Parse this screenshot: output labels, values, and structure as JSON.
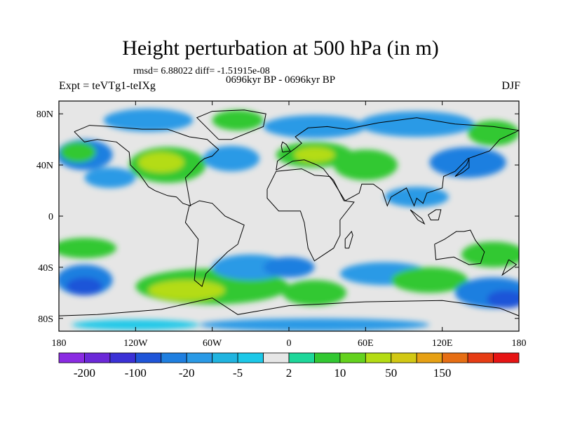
{
  "title": "Height perturbation at 500 hPa (in m)",
  "stats": "rmsd= 6.88022 diff= -1.51915e-08",
  "experiment": "Expt = teVTg1-teIXg",
  "period": "0696kyr BP - 0696kyr BP",
  "season": "DJF",
  "map": {
    "projection": "cylindrical-equidistant",
    "lon_range": [
      -180,
      180
    ],
    "lat_range": [
      -90,
      90
    ],
    "x_ticks": [
      {
        "lon": -180,
        "label": "180"
      },
      {
        "lon": -120,
        "label": "120W"
      },
      {
        "lon": -60,
        "label": "60W"
      },
      {
        "lon": 0,
        "label": "0"
      },
      {
        "lon": 60,
        "label": "60E"
      },
      {
        "lon": 120,
        "label": "120E"
      },
      {
        "lon": 180,
        "label": "180"
      }
    ],
    "y_ticks": [
      {
        "lat": 80,
        "label": "80N"
      },
      {
        "lat": 40,
        "label": "40N"
      },
      {
        "lat": 0,
        "label": "0"
      },
      {
        "lat": -40,
        "label": "40S"
      },
      {
        "lat": -80,
        "label": "80S"
      }
    ],
    "ocean_color": "#e6e6e6"
  },
  "colorbar": {
    "colors": [
      "#8a2be2",
      "#6b28d8",
      "#3b31d6",
      "#1f55d8",
      "#1f7fe0",
      "#2a9ae6",
      "#20b4e0",
      "#1cc8e8",
      "#e6e6e6",
      "#1ed79a",
      "#32c832",
      "#64d21e",
      "#b4dc14",
      "#d2c814",
      "#e6a014",
      "#e66e14",
      "#e63c14",
      "#e61414"
    ],
    "labels": [
      {
        "boundary": 1,
        "text": "-200"
      },
      {
        "boundary": 3,
        "text": "-100"
      },
      {
        "boundary": 5,
        "text": "-20"
      },
      {
        "boundary": 7,
        "text": "-5"
      },
      {
        "boundary": 9,
        "text": "2"
      },
      {
        "boundary": 11,
        "text": "10"
      },
      {
        "boundary": 13,
        "text": "50"
      },
      {
        "boundary": 15,
        "text": "150"
      }
    ]
  },
  "anomaly_regions": [
    {
      "lon": -160,
      "lat": 48,
      "rx": 22,
      "ry": 12,
      "color": "#1f7fe0"
    },
    {
      "lon": -165,
      "lat": 50,
      "rx": 14,
      "ry": 8,
      "color": "#32c832"
    },
    {
      "lon": -140,
      "lat": 30,
      "rx": 20,
      "ry": 8,
      "color": "#2a9ae6"
    },
    {
      "lon": -110,
      "lat": 75,
      "rx": 35,
      "ry": 9,
      "color": "#2a9ae6"
    },
    {
      "lon": -95,
      "lat": 40,
      "rx": 30,
      "ry": 14,
      "color": "#32c832"
    },
    {
      "lon": -100,
      "lat": 42,
      "rx": 18,
      "ry": 8,
      "color": "#b4dc14"
    },
    {
      "lon": -40,
      "lat": 75,
      "rx": 20,
      "ry": 8,
      "color": "#32c832"
    },
    {
      "lon": -45,
      "lat": 45,
      "rx": 22,
      "ry": 10,
      "color": "#2a9ae6"
    },
    {
      "lon": 20,
      "lat": 70,
      "rx": 40,
      "ry": 9,
      "color": "#2a9ae6"
    },
    {
      "lon": 20,
      "lat": 48,
      "rx": 30,
      "ry": 10,
      "color": "#32c832"
    },
    {
      "lon": 20,
      "lat": 48,
      "rx": 16,
      "ry": 6,
      "color": "#b4dc14"
    },
    {
      "lon": 100,
      "lat": 72,
      "rx": 45,
      "ry": 10,
      "color": "#2a9ae6"
    },
    {
      "lon": 60,
      "lat": 40,
      "rx": 25,
      "ry": 12,
      "color": "#32c832"
    },
    {
      "lon": 140,
      "lat": 42,
      "rx": 30,
      "ry": 12,
      "color": "#1f7fe0"
    },
    {
      "lon": 160,
      "lat": 65,
      "rx": 20,
      "ry": 10,
      "color": "#32c832"
    },
    {
      "lon": 100,
      "lat": 15,
      "rx": 25,
      "ry": 8,
      "color": "#2a9ae6"
    },
    {
      "lon": -160,
      "lat": -25,
      "rx": 25,
      "ry": 8,
      "color": "#32c832"
    },
    {
      "lon": -160,
      "lat": -50,
      "rx": 22,
      "ry": 12,
      "color": "#1f7fe0"
    },
    {
      "lon": -160,
      "lat": -55,
      "rx": 14,
      "ry": 7,
      "color": "#1f55d8"
    },
    {
      "lon": -60,
      "lat": -55,
      "rx": 60,
      "ry": 14,
      "color": "#32c832"
    },
    {
      "lon": -80,
      "lat": -58,
      "rx": 30,
      "ry": 8,
      "color": "#b4dc14"
    },
    {
      "lon": -30,
      "lat": -40,
      "rx": 30,
      "ry": 10,
      "color": "#2a9ae6"
    },
    {
      "lon": 0,
      "lat": -40,
      "rx": 20,
      "ry": 8,
      "color": "#1f7fe0"
    },
    {
      "lon": 20,
      "lat": -60,
      "rx": 25,
      "ry": 10,
      "color": "#32c832"
    },
    {
      "lon": 75,
      "lat": -45,
      "rx": 35,
      "ry": 9,
      "color": "#2a9ae6"
    },
    {
      "lon": 110,
      "lat": -50,
      "rx": 30,
      "ry": 10,
      "color": "#32c832"
    },
    {
      "lon": 160,
      "lat": -30,
      "rx": 25,
      "ry": 10,
      "color": "#32c832"
    },
    {
      "lon": 160,
      "lat": -60,
      "rx": 30,
      "ry": 12,
      "color": "#1f7fe0"
    },
    {
      "lon": 170,
      "lat": -65,
      "rx": 15,
      "ry": 7,
      "color": "#1f55d8"
    },
    {
      "lon": 20,
      "lat": -85,
      "rx": 90,
      "ry": 5,
      "color": "#2a9ae6"
    },
    {
      "lon": -120,
      "lat": -85,
      "rx": 50,
      "ry": 4,
      "color": "#1cc8e8"
    }
  ],
  "coastlines": [
    {
      "name": "north-america",
      "points": [
        [
          -168,
          66
        ],
        [
          -160,
          58
        ],
        [
          -150,
          60
        ],
        [
          -135,
          58
        ],
        [
          -125,
          50
        ],
        [
          -124,
          40
        ],
        [
          -117,
          33
        ],
        [
          -110,
          23
        ],
        [
          -105,
          20
        ],
        [
          -95,
          16
        ],
        [
          -88,
          15
        ],
        [
          -83,
          10
        ],
        [
          -77,
          8
        ],
        [
          -80,
          25
        ],
        [
          -81,
          30
        ],
        [
          -76,
          35
        ],
        [
          -70,
          42
        ],
        [
          -66,
          45
        ],
        [
          -60,
          47
        ],
        [
          -55,
          52
        ],
        [
          -64,
          60
        ],
        [
          -78,
          62
        ],
        [
          -95,
          68
        ],
        [
          -115,
          68
        ],
        [
          -140,
          70
        ],
        [
          -156,
          71
        ],
        [
          -168,
          66
        ]
      ]
    },
    {
      "name": "greenland",
      "points": [
        [
          -55,
          60
        ],
        [
          -45,
          60
        ],
        [
          -20,
          70
        ],
        [
          -18,
          80
        ],
        [
          -35,
          83
        ],
        [
          -60,
          82
        ],
        [
          -72,
          77
        ],
        [
          -55,
          60
        ]
      ]
    },
    {
      "name": "south-america",
      "points": [
        [
          -78,
          8
        ],
        [
          -70,
          12
        ],
        [
          -60,
          10
        ],
        [
          -50,
          0
        ],
        [
          -35,
          -7
        ],
        [
          -40,
          -22
        ],
        [
          -48,
          -28
        ],
        [
          -58,
          -38
        ],
        [
          -65,
          -45
        ],
        [
          -68,
          -55
        ],
        [
          -74,
          -50
        ],
        [
          -72,
          -30
        ],
        [
          -71,
          -18
        ],
        [
          -81,
          -5
        ],
        [
          -78,
          8
        ]
      ]
    },
    {
      "name": "africa",
      "points": [
        [
          -17,
          21
        ],
        [
          -10,
          35
        ],
        [
          0,
          36
        ],
        [
          10,
          37
        ],
        [
          20,
          32
        ],
        [
          32,
          31
        ],
        [
          35,
          28
        ],
        [
          43,
          12
        ],
        [
          51,
          11
        ],
        [
          40,
          -3
        ],
        [
          40,
          -15
        ],
        [
          35,
          -25
        ],
        [
          20,
          -35
        ],
        [
          15,
          -25
        ],
        [
          12,
          -5
        ],
        [
          9,
          4
        ],
        [
          -8,
          4
        ],
        [
          -17,
          14
        ],
        [
          -17,
          21
        ]
      ]
    },
    {
      "name": "eurasia",
      "points": [
        [
          -10,
          36
        ],
        [
          -9,
          43
        ],
        [
          -2,
          48
        ],
        [
          5,
          53
        ],
        [
          10,
          57
        ],
        [
          5,
          62
        ],
        [
          15,
          69
        ],
        [
          30,
          70
        ],
        [
          45,
          68
        ],
        [
          70,
          73
        ],
        [
          100,
          77
        ],
        [
          130,
          72
        ],
        [
          160,
          70
        ],
        [
          180,
          67
        ],
        [
          165,
          60
        ],
        [
          157,
          51
        ],
        [
          140,
          45
        ],
        [
          130,
          35
        ],
        [
          121,
          31
        ],
        [
          120,
          22
        ],
        [
          108,
          18
        ],
        [
          105,
          10
        ],
        [
          100,
          14
        ],
        [
          98,
          8
        ],
        [
          92,
          22
        ],
        [
          80,
          15
        ],
        [
          77,
          8
        ],
        [
          73,
          20
        ],
        [
          66,
          25
        ],
        [
          57,
          25
        ],
        [
          55,
          18
        ],
        [
          44,
          12
        ],
        [
          34,
          28
        ],
        [
          27,
          37
        ],
        [
          22,
          40
        ],
        [
          12,
          44
        ],
        [
          3,
          43
        ],
        [
          -10,
          36
        ]
      ]
    },
    {
      "name": "australia",
      "points": [
        [
          114,
          -22
        ],
        [
          122,
          -18
        ],
        [
          131,
          -12
        ],
        [
          137,
          -12
        ],
        [
          142,
          -11
        ],
        [
          146,
          -19
        ],
        [
          153,
          -28
        ],
        [
          150,
          -37
        ],
        [
          141,
          -38
        ],
        [
          135,
          -35
        ],
        [
          129,
          -32
        ],
        [
          115,
          -34
        ],
        [
          114,
          -22
        ]
      ]
    },
    {
      "name": "antarctica",
      "points": [
        [
          -180,
          -78
        ],
        [
          -150,
          -77
        ],
        [
          -100,
          -73
        ],
        [
          -60,
          -64
        ],
        [
          -40,
          -77
        ],
        [
          0,
          -70
        ],
        [
          60,
          -67
        ],
        [
          120,
          -66
        ],
        [
          165,
          -72
        ],
        [
          180,
          -78
        ]
      ]
    },
    {
      "name": "borneo",
      "points": [
        [
          109,
          1
        ],
        [
          115,
          5
        ],
        [
          119,
          5
        ],
        [
          117,
          -3
        ],
        [
          111,
          -3
        ],
        [
          109,
          1
        ]
      ]
    },
    {
      "name": "sumatra",
      "points": [
        [
          95,
          5
        ],
        [
          104,
          -2
        ],
        [
          106,
          -6
        ],
        [
          101,
          -3
        ],
        [
          95,
          5
        ]
      ]
    },
    {
      "name": "new-zealand",
      "points": [
        [
          172,
          -34
        ],
        [
          178,
          -38
        ],
        [
          174,
          -41
        ],
        [
          167,
          -46
        ],
        [
          172,
          -34
        ]
      ]
    },
    {
      "name": "madagascar",
      "points": [
        [
          44,
          -25
        ],
        [
          47,
          -25
        ],
        [
          50,
          -15
        ],
        [
          49,
          -12
        ],
        [
          44,
          -18
        ],
        [
          44,
          -25
        ]
      ]
    },
    {
      "name": "japan",
      "points": [
        [
          130,
          31
        ],
        [
          136,
          34
        ],
        [
          141,
          38
        ],
        [
          141,
          45
        ],
        [
          139,
          40
        ],
        [
          133,
          34
        ],
        [
          130,
          31
        ]
      ]
    },
    {
      "name": "uk",
      "points": [
        [
          -5,
          50
        ],
        [
          1,
          51
        ],
        [
          -2,
          56
        ],
        [
          -5,
          58
        ],
        [
          -6,
          55
        ],
        [
          -5,
          50
        ]
      ]
    }
  ]
}
